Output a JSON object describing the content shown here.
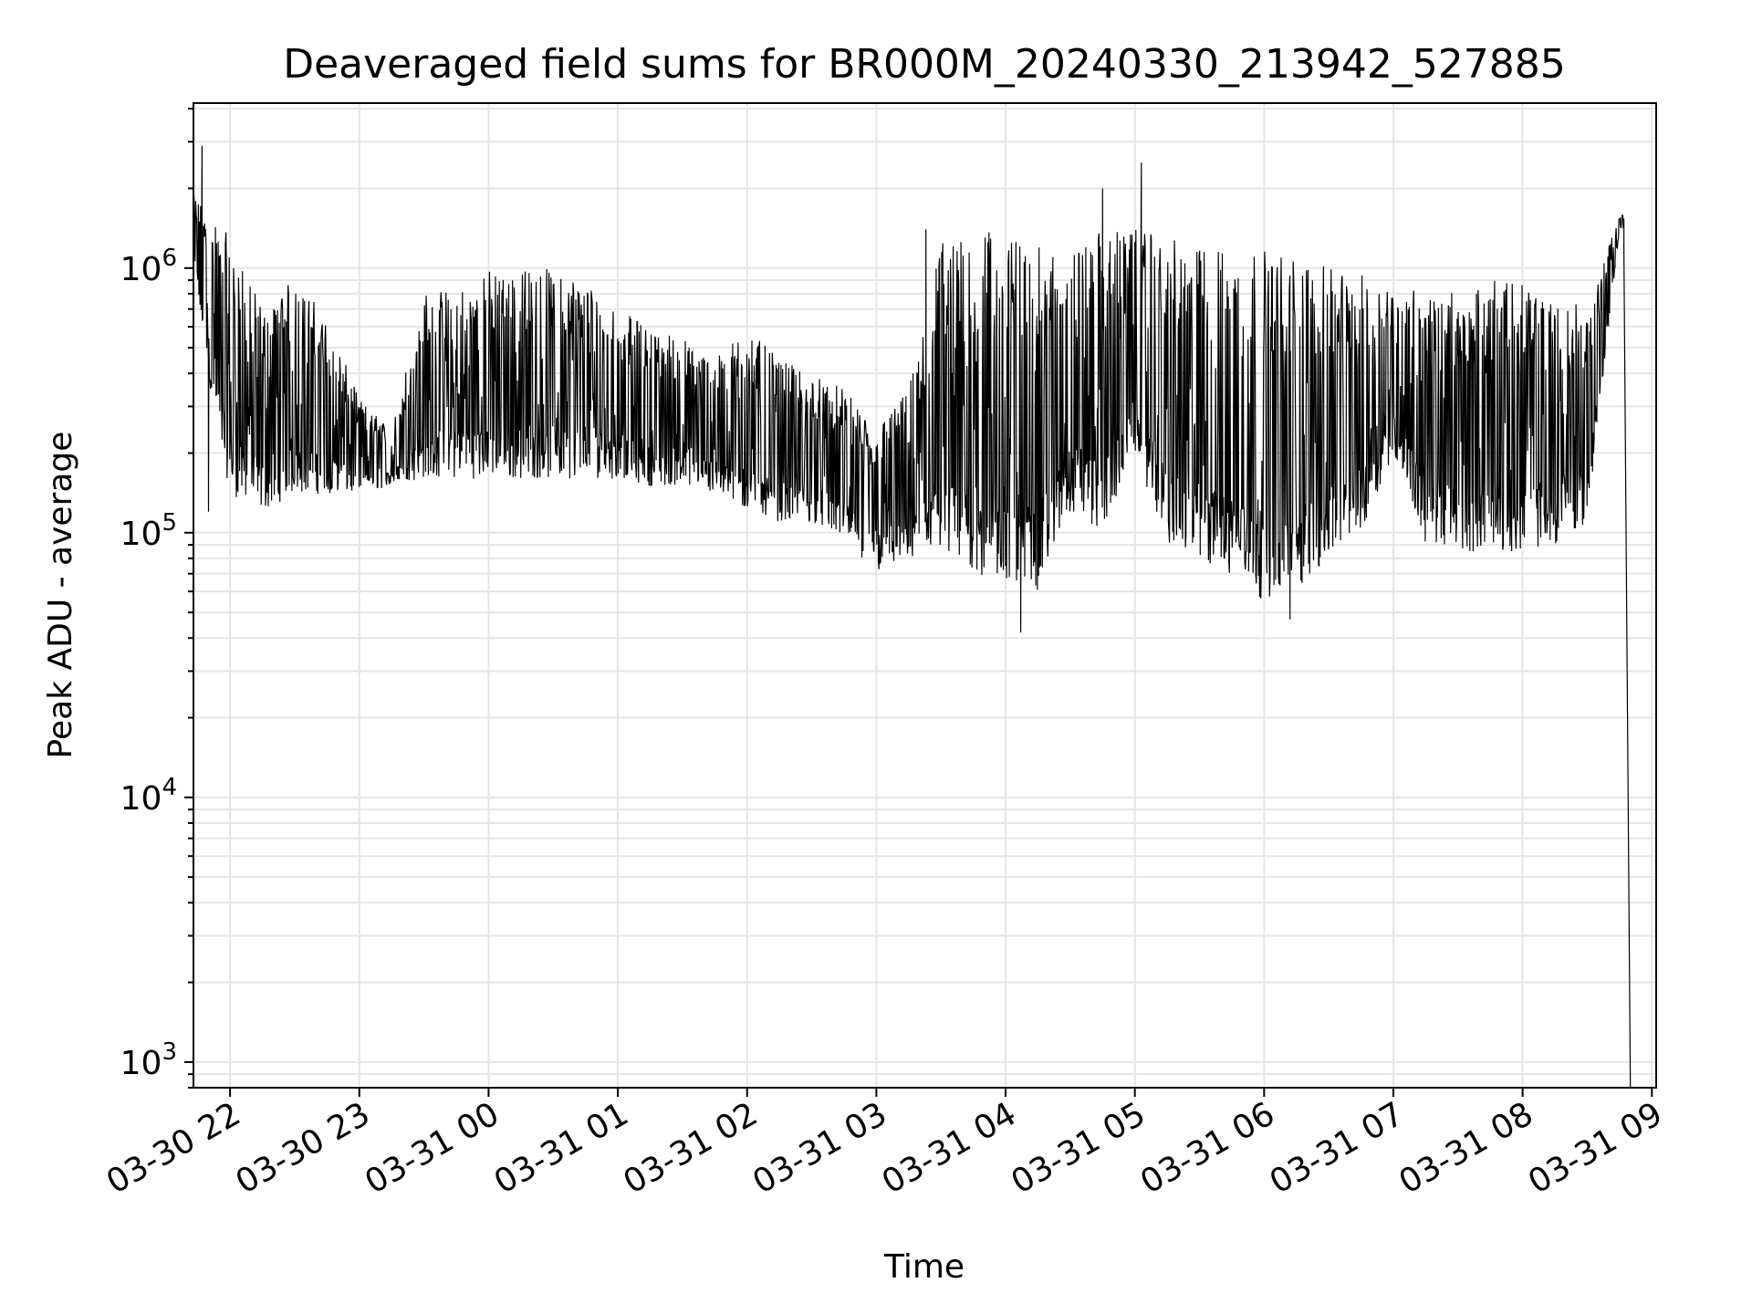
{
  "chart_data": {
    "type": "line",
    "title": "Deaveraged field sums for BR000M_20240330_213942_527885",
    "xlabel": "Time",
    "ylabel": "Peak ADU - average",
    "y_scale": "log",
    "ylim": [
      800,
      4200000
    ],
    "xlim": [
      "2024-03-30 21:43",
      "2024-03-31 09:02"
    ],
    "grid": true,
    "grid_minor": true,
    "line_color": "#000000",
    "x_ticks": [
      {
        "t": "2024-03-30 22:00",
        "label": "03-30 22"
      },
      {
        "t": "2024-03-30 23:00",
        "label": "03-30 23"
      },
      {
        "t": "2024-03-31 00:00",
        "label": "03-31 00"
      },
      {
        "t": "2024-03-31 01:00",
        "label": "03-31 01"
      },
      {
        "t": "2024-03-31 02:00",
        "label": "03-31 02"
      },
      {
        "t": "2024-03-31 03:00",
        "label": "03-31 03"
      },
      {
        "t": "2024-03-31 04:00",
        "label": "03-31 04"
      },
      {
        "t": "2024-03-31 05:00",
        "label": "03-31 05"
      },
      {
        "t": "2024-03-31 06:00",
        "label": "03-31 06"
      },
      {
        "t": "2024-03-31 07:00",
        "label": "03-31 07"
      },
      {
        "t": "2024-03-31 08:00",
        "label": "03-31 08"
      },
      {
        "t": "2024-03-31 09:00",
        "label": "03-31 09"
      }
    ],
    "y_ticks": [
      {
        "value": 1000,
        "base": "10",
        "exp": "3"
      },
      {
        "value": 10000,
        "base": "10",
        "exp": "4"
      },
      {
        "value": 100000,
        "base": "10",
        "exp": "5"
      },
      {
        "value": 1000000,
        "base": "10",
        "exp": "6"
      }
    ],
    "envelope": {
      "x": [
        "2024-03-30 21:43",
        "2024-03-30 21:52",
        "2024-03-30 22:00",
        "2024-03-30 22:15",
        "2024-03-30 22:30",
        "2024-03-30 22:45",
        "2024-03-30 23:00",
        "2024-03-30 23:15",
        "2024-03-30 23:30",
        "2024-03-30 23:45",
        "2024-03-31 00:00",
        "2024-03-31 00:15",
        "2024-03-31 00:30",
        "2024-03-31 00:45",
        "2024-03-31 01:00",
        "2024-03-31 01:15",
        "2024-03-31 01:30",
        "2024-03-31 01:45",
        "2024-03-31 02:00",
        "2024-03-31 02:15",
        "2024-03-31 02:30",
        "2024-03-31 02:45",
        "2024-03-31 03:00",
        "2024-03-31 03:15",
        "2024-03-31 03:30",
        "2024-03-31 03:45",
        "2024-03-31 04:00",
        "2024-03-31 04:15",
        "2024-03-31 04:30",
        "2024-03-31 04:45",
        "2024-03-31 05:00",
        "2024-03-31 05:15",
        "2024-03-31 05:30",
        "2024-03-31 05:45",
        "2024-03-31 06:00",
        "2024-03-31 06:15",
        "2024-03-31 06:30",
        "2024-03-31 06:45",
        "2024-03-31 07:00",
        "2024-03-31 07:15",
        "2024-03-31 07:30",
        "2024-03-31 07:45",
        "2024-03-31 08:00",
        "2024-03-31 08:15",
        "2024-03-31 08:30",
        "2024-03-31 08:45"
      ],
      "high": [
        1900000,
        1600000,
        1300000,
        700000,
        950000,
        650000,
        320000,
        250000,
        800000,
        850000,
        1000000,
        1000000,
        1000000,
        900000,
        700000,
        600000,
        550000,
        450000,
        600000,
        450000,
        400000,
        350000,
        250000,
        350000,
        1300000,
        1400000,
        1400000,
        1200000,
        1200000,
        1400000,
        1400000,
        1300000,
        1200000,
        1200000,
        1200000,
        1100000,
        1000000,
        950000,
        850000,
        850000,
        800000,
        900000,
        900000,
        800000,
        700000,
        1600000
      ],
      "low": [
        1000000,
        300000,
        140000,
        120000,
        140000,
        140000,
        140000,
        150000,
        160000,
        160000,
        160000,
        160000,
        160000,
        160000,
        160000,
        150000,
        150000,
        140000,
        120000,
        110000,
        110000,
        95000,
        70000,
        80000,
        75000,
        70000,
        65000,
        60000,
        120000,
        100000,
        200000,
        90000,
        75000,
        70000,
        55000,
        60000,
        80000,
        100000,
        200000,
        90000,
        85000,
        85000,
        85000,
        90000,
        110000,
        1400000
      ]
    },
    "spikes": [
      {
        "x": "2024-03-30 21:47",
        "y": 2900000
      },
      {
        "x": "2024-03-30 21:50",
        "y": 120000
      },
      {
        "x": "2024-03-31 03:23",
        "y": 1400000
      },
      {
        "x": "2024-03-31 04:07",
        "y": 42000
      },
      {
        "x": "2024-03-31 04:45",
        "y": 2000000
      },
      {
        "x": "2024-03-31 05:03",
        "y": 2500000
      },
      {
        "x": "2024-03-31 06:12",
        "y": 47000
      }
    ],
    "end_drop": {
      "x": [
        "2024-03-31 08:47",
        "2024-03-31 08:50"
      ],
      "y": [
        1200000,
        800
      ]
    }
  }
}
